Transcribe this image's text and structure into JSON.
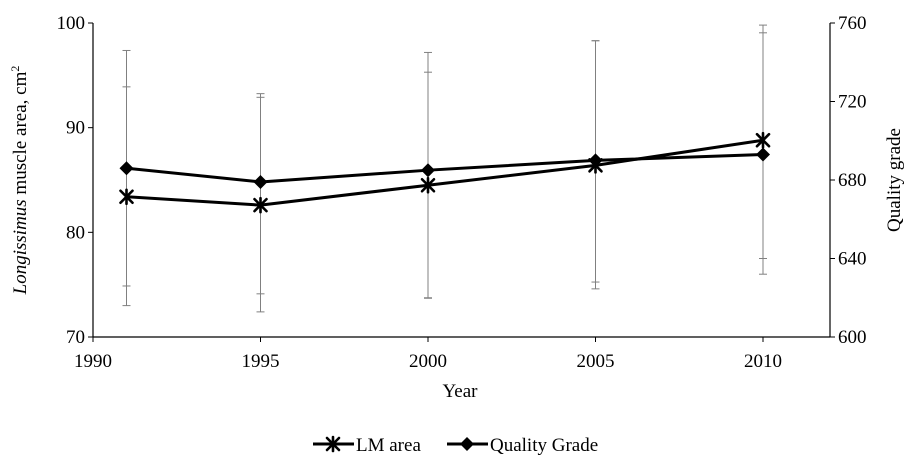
{
  "chart_data": {
    "type": "line",
    "x": [
      1991,
      1995,
      2000,
      2005,
      2010
    ],
    "xlabel": "Year",
    "xlim": [
      1990,
      2012
    ],
    "xticks": [
      "1990",
      "1995",
      "2000",
      "2005",
      "2010"
    ],
    "y_left": {
      "label_italic": "Longissimus",
      "label_rest": " muscle area, cm",
      "label_sup": "2",
      "lim": [
        70,
        100
      ],
      "ticks": [
        "70",
        "80",
        "90",
        "100"
      ]
    },
    "y_right": {
      "label": "Quality grade",
      "lim": [
        600,
        760
      ],
      "ticks": [
        "600",
        "640",
        "680",
        "720",
        "760"
      ]
    },
    "series": [
      {
        "name": "LM area",
        "axis": "left",
        "marker": "x-star",
        "values": [
          83.4,
          82.6,
          84.5,
          86.4,
          88.8
        ],
        "error_low": [
          73.0,
          72.4,
          73.7,
          74.6,
          76.0
        ],
        "error_high": [
          93.9,
          92.9,
          95.3,
          98.3,
          99.8
        ]
      },
      {
        "name": "Quality Grade",
        "axis": "right",
        "marker": "diamond",
        "values": [
          686,
          679,
          685,
          690,
          693
        ],
        "error_low": [
          626,
          622,
          620,
          628,
          640
        ],
        "error_high": [
          746,
          724,
          745,
          751,
          755
        ]
      }
    ],
    "legend_position": "bottom",
    "grid": false,
    "colors": {
      "line": "#000000",
      "error_bar": "#808080"
    }
  }
}
